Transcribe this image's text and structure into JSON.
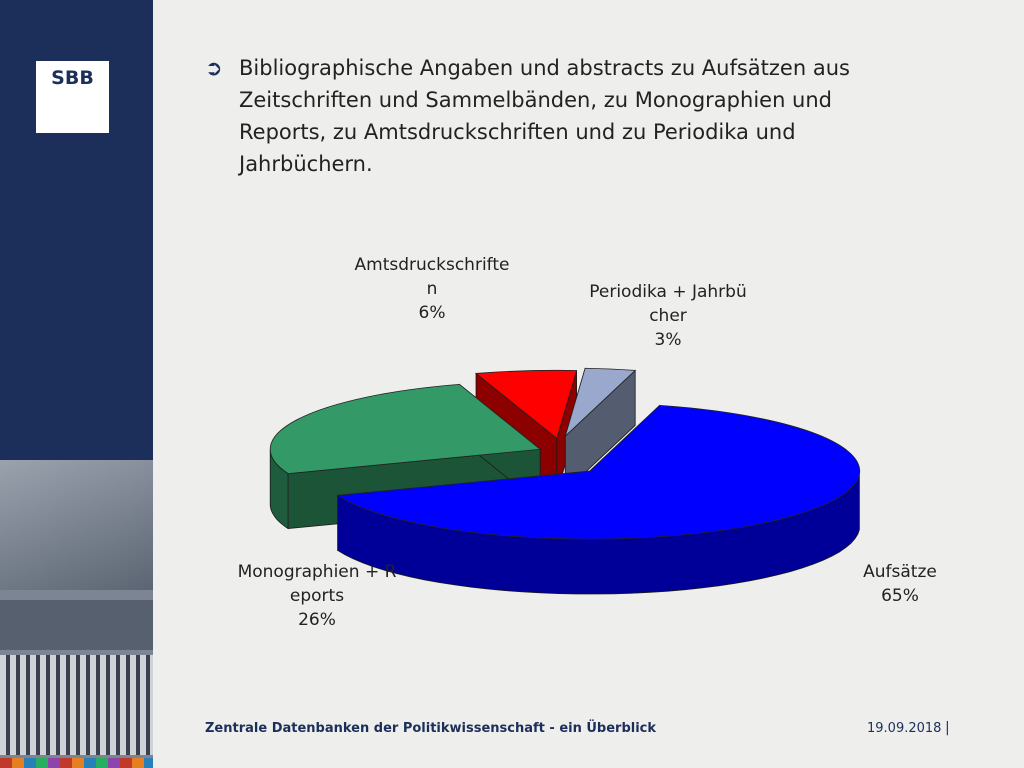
{
  "logo": "SBB",
  "bullet": "Bibliographische Angaben und abstracts zu Aufsätzen aus Zeitschriften und Sammelbänden, zu Monographien und Reports, zu Amtsdruckschriften und zu Periodika und Jahrbüchern.",
  "chart_data": {
    "type": "pie",
    "categories": [
      "Aufsätze",
      "Monographien + Reports",
      "Amtsdruckschriften",
      "Periodika + Jahrbücher"
    ],
    "values": [
      65,
      26,
      6,
      3
    ],
    "value_labels": [
      "65%",
      "26%",
      "6%",
      "3%"
    ],
    "colors": [
      "#0000ff",
      "#339966",
      "#ff0000",
      "#99a8cc"
    ]
  },
  "footer": {
    "title": "Zentrale Datenbanken der Politikwissenschaft - ein Überblick",
    "date": "19.09.2018",
    "separator": "|"
  }
}
